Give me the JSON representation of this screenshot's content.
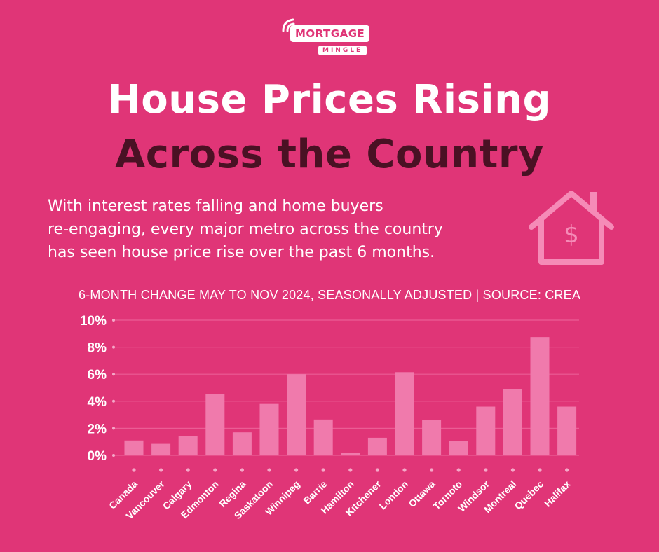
{
  "logo": {
    "top": "MORTGAGE",
    "bottom": "MINGLE"
  },
  "header": {
    "title_line1": "House Prices Rising",
    "title_line2": "Across the Country",
    "intro_lines": [
      "With interest rates falling and home buyers",
      "re-engaging, every major metro across the country",
      "has seen house price rise over the past 6 months."
    ],
    "house_icon": "house-dollar-icon"
  },
  "colors": {
    "background": "#e03577",
    "bar": "#f07aac",
    "grid": "#eb5d95",
    "dark_text": "#4a1124"
  },
  "chart_data": {
    "type": "bar",
    "title": "6-MONTH CHANGE MAY TO NOV 2024, SEASONALLY ADJUSTED | SOURCE: CREA",
    "categories": [
      "Canada",
      "Vancouver",
      "Calgary",
      "Edmonton",
      "Regina",
      "Saskatoon",
      "Winnipeg",
      "Barrie",
      "Hamilton",
      "Kitchener",
      "London",
      "Ottawa",
      "Tornoto",
      "Windsor",
      "Montreal",
      "Quebec",
      "Halifax"
    ],
    "values": [
      1.1,
      0.85,
      1.4,
      4.55,
      1.7,
      3.8,
      6.0,
      2.65,
      0.2,
      1.3,
      6.15,
      2.6,
      1.05,
      3.6,
      4.9,
      8.75,
      3.6
    ],
    "ylim": [
      0,
      10
    ],
    "yticks": [
      0,
      2,
      4,
      6,
      8,
      10
    ],
    "ytick_labels": [
      "0%",
      "2%",
      "4%",
      "6%",
      "8%",
      "10%"
    ],
    "xlabel": "",
    "ylabel": "",
    "grid": true
  }
}
